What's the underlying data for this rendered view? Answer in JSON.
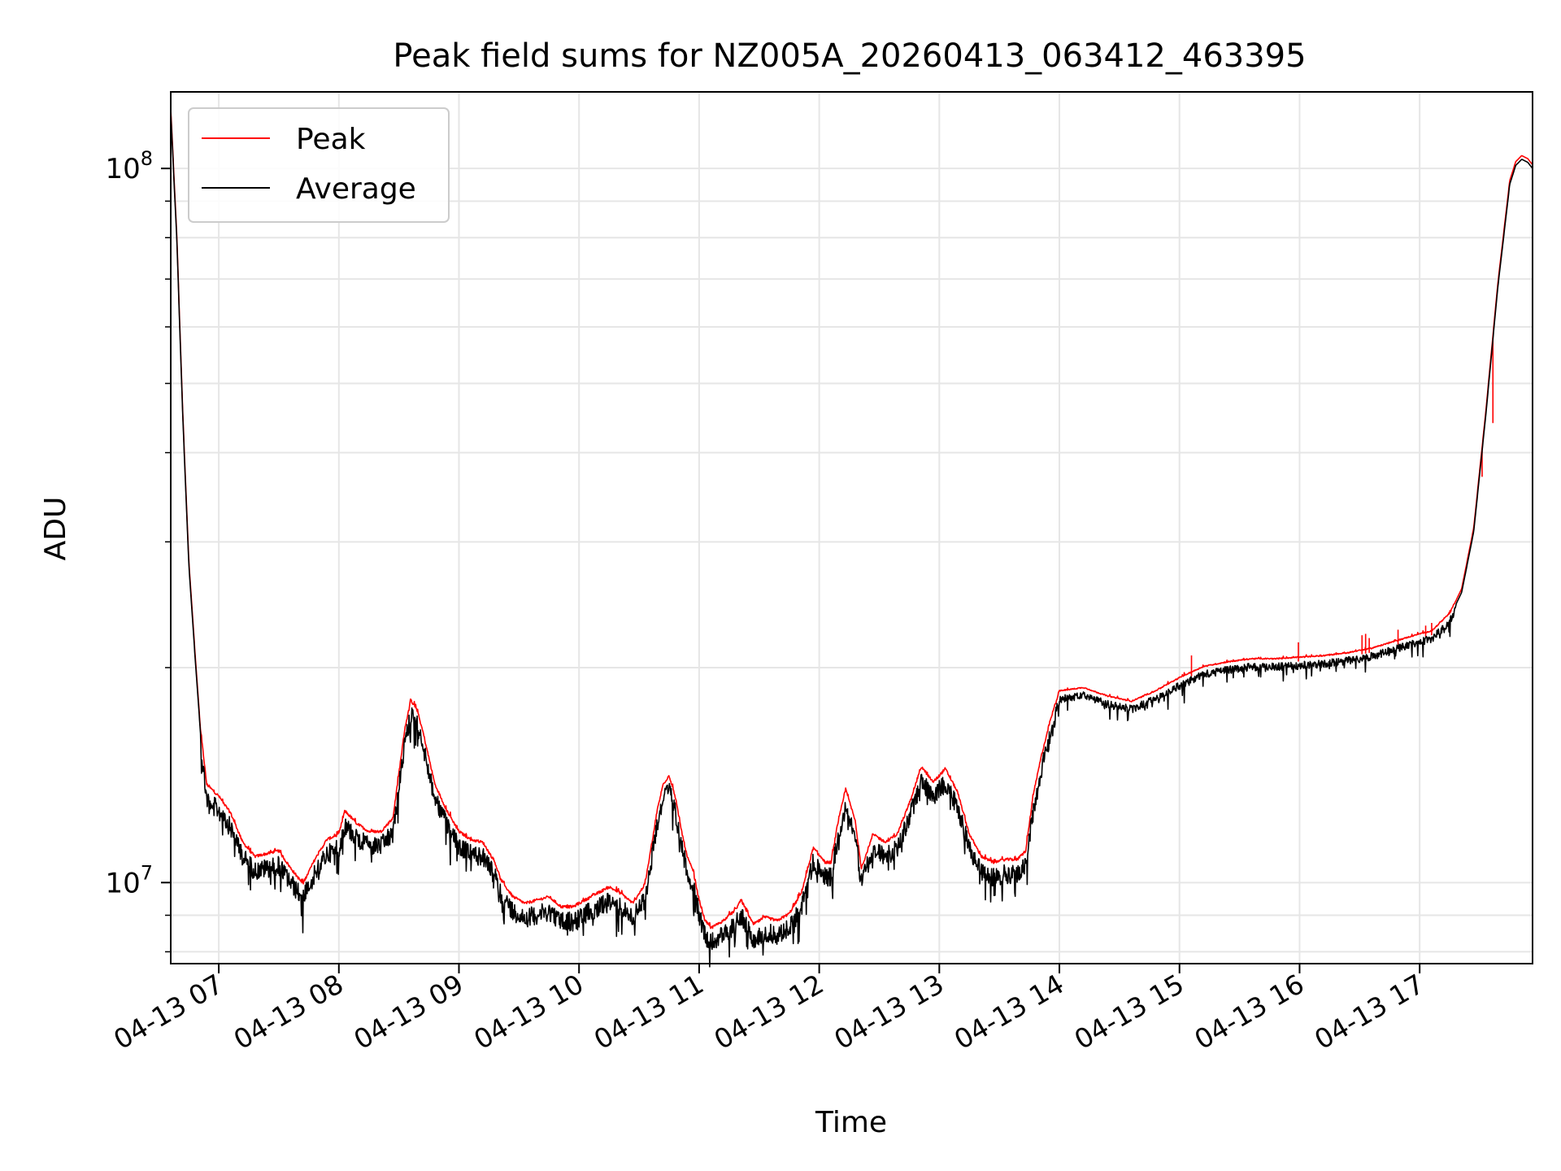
{
  "chart_data": {
    "type": "line",
    "title": "Peak field sums for NZ005A_20260413_063412_463395",
    "xlabel": "Time",
    "ylabel": "ADU",
    "yscale": "log",
    "ylim": [
      7700000,
      128000000
    ],
    "xlim": [
      6.6,
      17.94
    ],
    "grid": true,
    "legend_position": "top-left",
    "x_ticks": [
      {
        "value": 7,
        "label": "04-13 07"
      },
      {
        "value": 8,
        "label": "04-13 08"
      },
      {
        "value": 9,
        "label": "04-13 09"
      },
      {
        "value": 10,
        "label": "04-13 10"
      },
      {
        "value": 11,
        "label": "04-13 11"
      },
      {
        "value": 12,
        "label": "04-13 12"
      },
      {
        "value": 13,
        "label": "04-13 13"
      },
      {
        "value": 14,
        "label": "04-13 14"
      },
      {
        "value": 15,
        "label": "04-13 15"
      },
      {
        "value": 16,
        "label": "04-13 16"
      },
      {
        "value": 17,
        "label": "04-13 17"
      }
    ],
    "y_ticks_major": [
      {
        "value": 10000000,
        "base": "10",
        "exp": "7"
      },
      {
        "value": 100000000,
        "base": "10",
        "exp": "8"
      }
    ],
    "y_ticks_minor": [
      8000000,
      9000000,
      20000000,
      30000000,
      40000000,
      50000000,
      60000000,
      70000000,
      80000000,
      90000000
    ],
    "series": [
      {
        "name": "Peak",
        "color": "#ff0000"
      },
      {
        "name": "Average",
        "color": "#000000"
      }
    ],
    "points": [
      [
        6.6,
        120000000
      ],
      [
        6.65,
        80000000
      ],
      [
        6.7,
        45000000
      ],
      [
        6.75,
        28000000
      ],
      [
        6.8,
        21000000
      ],
      [
        6.85,
        16000000
      ],
      [
        6.9,
        13500000
      ],
      [
        7.0,
        13000000
      ],
      [
        7.1,
        12300000
      ],
      [
        7.2,
        11200000
      ],
      [
        7.3,
        10700000
      ],
      [
        7.4,
        10800000
      ],
      [
        7.5,
        10900000
      ],
      [
        7.6,
        10300000
      ],
      [
        7.7,
        9800000
      ],
      [
        7.8,
        10600000
      ],
      [
        7.9,
        11300000
      ],
      [
        8.0,
        11500000
      ],
      [
        8.05,
        12400000
      ],
      [
        8.15,
        11900000
      ],
      [
        8.25,
        11600000
      ],
      [
        8.35,
        11600000
      ],
      [
        8.45,
        12100000
      ],
      [
        8.5,
        14000000
      ],
      [
        8.55,
        16200000
      ],
      [
        8.6,
        17700000
      ],
      [
        8.65,
        17200000
      ],
      [
        8.7,
        16000000
      ],
      [
        8.8,
        13500000
      ],
      [
        8.9,
        12400000
      ],
      [
        9.0,
        11600000
      ],
      [
        9.1,
        11300000
      ],
      [
        9.2,
        11200000
      ],
      [
        9.3,
        10500000
      ],
      [
        9.35,
        9900000
      ],
      [
        9.45,
        9400000
      ],
      [
        9.55,
        9200000
      ],
      [
        9.65,
        9300000
      ],
      [
        9.75,
        9400000
      ],
      [
        9.85,
        9100000
      ],
      [
        9.95,
        9100000
      ],
      [
        10.05,
        9300000
      ],
      [
        10.15,
        9500000
      ],
      [
        10.25,
        9700000
      ],
      [
        10.35,
        9500000
      ],
      [
        10.45,
        9200000
      ],
      [
        10.55,
        9800000
      ],
      [
        10.6,
        11000000
      ],
      [
        10.65,
        12400000
      ],
      [
        10.7,
        13500000
      ],
      [
        10.75,
        13900000
      ],
      [
        10.8,
        13000000
      ],
      [
        10.85,
        11700000
      ],
      [
        10.9,
        10700000
      ],
      [
        10.95,
        10200000
      ],
      [
        11.0,
        9300000
      ],
      [
        11.05,
        8700000
      ],
      [
        11.1,
        8500000
      ],
      [
        11.2,
        8700000
      ],
      [
        11.3,
        9000000
      ],
      [
        11.35,
        9300000
      ],
      [
        11.45,
        8600000
      ],
      [
        11.55,
        8800000
      ],
      [
        11.65,
        8700000
      ],
      [
        11.75,
        8900000
      ],
      [
        11.85,
        9500000
      ],
      [
        11.95,
        11000000
      ],
      [
        12.05,
        10500000
      ],
      [
        12.1,
        10500000
      ],
      [
        12.15,
        11800000
      ],
      [
        12.22,
        13300000
      ],
      [
        12.3,
        12000000
      ],
      [
        12.35,
        10300000
      ],
      [
        12.45,
        11500000
      ],
      [
        12.55,
        11200000
      ],
      [
        12.65,
        11500000
      ],
      [
        12.75,
        12700000
      ],
      [
        12.85,
        14300000
      ],
      [
        12.95,
        13600000
      ],
      [
        13.05,
        14200000
      ],
      [
        13.15,
        13200000
      ],
      [
        13.25,
        11500000
      ],
      [
        13.35,
        10700000
      ],
      [
        13.45,
        10500000
      ],
      [
        13.55,
        10600000
      ],
      [
        13.65,
        10600000
      ],
      [
        13.72,
        10900000
      ],
      [
        13.78,
        13000000
      ],
      [
        13.85,
        14800000
      ],
      [
        13.92,
        16500000
      ],
      [
        14.0,
        18300000
      ],
      [
        14.2,
        18500000
      ],
      [
        14.4,
        18000000
      ],
      [
        14.6,
        17700000
      ],
      [
        14.8,
        18300000
      ],
      [
        15.0,
        19100000
      ],
      [
        15.2,
        19800000
      ],
      [
        15.4,
        20100000
      ],
      [
        15.6,
        20300000
      ],
      [
        15.8,
        20300000
      ],
      [
        16.0,
        20400000
      ],
      [
        16.2,
        20500000
      ],
      [
        16.4,
        20700000
      ],
      [
        16.6,
        21000000
      ],
      [
        16.8,
        21500000
      ],
      [
        17.0,
        22000000
      ],
      [
        17.1,
        22200000
      ],
      [
        17.25,
        23500000
      ],
      [
        17.35,
        25500000
      ],
      [
        17.45,
        31000000
      ],
      [
        17.55,
        45000000
      ],
      [
        17.65,
        68000000
      ],
      [
        17.75,
        95000000
      ],
      [
        17.8,
        101000000
      ],
      [
        17.85,
        103000000
      ],
      [
        17.9,
        102000000
      ],
      [
        17.94,
        100000000
      ]
    ],
    "spikes": [
      {
        "x": 15.1,
        "value": 20800000
      },
      {
        "x": 15.99,
        "value": 21700000
      },
      {
        "x": 16.52,
        "value": 22200000
      },
      {
        "x": 16.55,
        "value": 22300000
      },
      {
        "x": 16.58,
        "value": 22000000
      },
      {
        "x": 16.82,
        "value": 22600000
      },
      {
        "x": 17.05,
        "value": 22900000
      },
      {
        "x": 17.1,
        "value": 23100000
      },
      {
        "x": 17.52,
        "value": 37000000
      },
      {
        "x": 17.61,
        "value": 44000000
      }
    ]
  }
}
